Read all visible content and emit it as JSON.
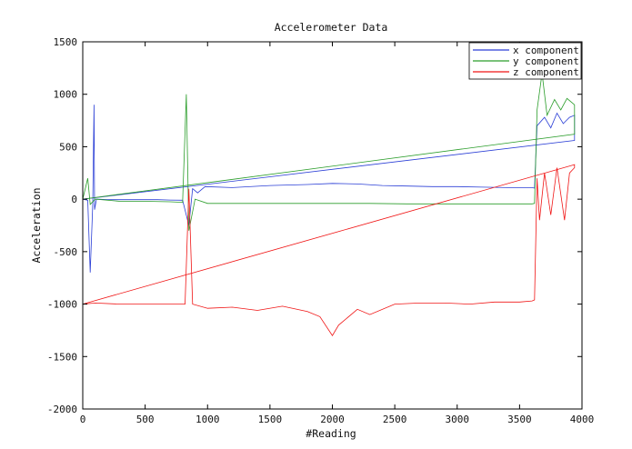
{
  "chart_data": {
    "type": "line",
    "title": "Accelerometer Data",
    "xlabel": "#Reading",
    "ylabel": "Acceleration",
    "xlim": [
      0,
      4000
    ],
    "ylim": [
      -2000,
      1500
    ],
    "xticks": [
      0,
      500,
      1000,
      1500,
      2000,
      2500,
      3000,
      3500,
      4000
    ],
    "yticks": [
      -2000,
      -1500,
      -1000,
      -500,
      0,
      500,
      1000,
      1500
    ],
    "grid": false,
    "legend_position": "top-right",
    "series": [
      {
        "name": "x component",
        "color": "#2b3fd6",
        "points": [
          [
            0,
            0
          ],
          [
            40,
            -10
          ],
          [
            60,
            -700
          ],
          [
            80,
            -50
          ],
          [
            90,
            900
          ],
          [
            95,
            -100
          ],
          [
            110,
            0
          ],
          [
            200,
            -5
          ],
          [
            400,
            -5
          ],
          [
            600,
            -5
          ],
          [
            700,
            -8
          ],
          [
            800,
            -10
          ],
          [
            850,
            -250
          ],
          [
            880,
            100
          ],
          [
            920,
            60
          ],
          [
            980,
            120
          ],
          [
            1200,
            110
          ],
          [
            1500,
            130
          ],
          [
            1800,
            140
          ],
          [
            2000,
            150
          ],
          [
            2200,
            145
          ],
          [
            2400,
            130
          ],
          [
            2600,
            125
          ],
          [
            2800,
            120
          ],
          [
            3000,
            120
          ],
          [
            3200,
            115
          ],
          [
            3400,
            110
          ],
          [
            3600,
            110
          ],
          [
            3620,
            105
          ],
          [
            3640,
            700
          ],
          [
            3700,
            780
          ],
          [
            3750,
            680
          ],
          [
            3800,
            820
          ],
          [
            3850,
            720
          ],
          [
            3900,
            780
          ],
          [
            3940,
            800
          ],
          [
            3940,
            560
          ],
          [
            0,
            0
          ]
        ]
      },
      {
        "name": "y component",
        "color": "#2a9d2a",
        "points": [
          [
            0,
            0
          ],
          [
            40,
            200
          ],
          [
            60,
            -50
          ],
          [
            100,
            0
          ],
          [
            300,
            -20
          ],
          [
            500,
            -20
          ],
          [
            700,
            -25
          ],
          [
            800,
            -30
          ],
          [
            830,
            1000
          ],
          [
            850,
            -300
          ],
          [
            900,
            0
          ],
          [
            1000,
            -40
          ],
          [
            1300,
            -40
          ],
          [
            1600,
            -40
          ],
          [
            2000,
            -40
          ],
          [
            2300,
            -40
          ],
          [
            2600,
            -45
          ],
          [
            3000,
            -45
          ],
          [
            3300,
            -45
          ],
          [
            3600,
            -45
          ],
          [
            3620,
            -40
          ],
          [
            3640,
            850
          ],
          [
            3680,
            1200
          ],
          [
            3720,
            800
          ],
          [
            3780,
            950
          ],
          [
            3830,
            850
          ],
          [
            3880,
            960
          ],
          [
            3940,
            900
          ],
          [
            3940,
            620
          ],
          [
            0,
            0
          ]
        ]
      },
      {
        "name": "z component",
        "color": "#f01515",
        "points": [
          [
            0,
            -1000
          ],
          [
            100,
            -990
          ],
          [
            300,
            -1000
          ],
          [
            500,
            -1000
          ],
          [
            700,
            -1000
          ],
          [
            820,
            -1000
          ],
          [
            850,
            100
          ],
          [
            880,
            -1000
          ],
          [
            1000,
            -1040
          ],
          [
            1200,
            -1030
          ],
          [
            1400,
            -1060
          ],
          [
            1600,
            -1020
          ],
          [
            1800,
            -1070
          ],
          [
            1900,
            -1120
          ],
          [
            2000,
            -1300
          ],
          [
            2050,
            -1200
          ],
          [
            2200,
            -1050
          ],
          [
            2300,
            -1100
          ],
          [
            2500,
            -1000
          ],
          [
            2700,
            -990
          ],
          [
            2900,
            -990
          ],
          [
            3100,
            -1000
          ],
          [
            3300,
            -980
          ],
          [
            3500,
            -980
          ],
          [
            3600,
            -970
          ],
          [
            3620,
            -960
          ],
          [
            3640,
            200
          ],
          [
            3660,
            -200
          ],
          [
            3700,
            250
          ],
          [
            3750,
            -150
          ],
          [
            3800,
            300
          ],
          [
            3860,
            -200
          ],
          [
            3900,
            250
          ],
          [
            3940,
            300
          ],
          [
            3940,
            330
          ],
          [
            0,
            -1000
          ]
        ]
      }
    ]
  }
}
